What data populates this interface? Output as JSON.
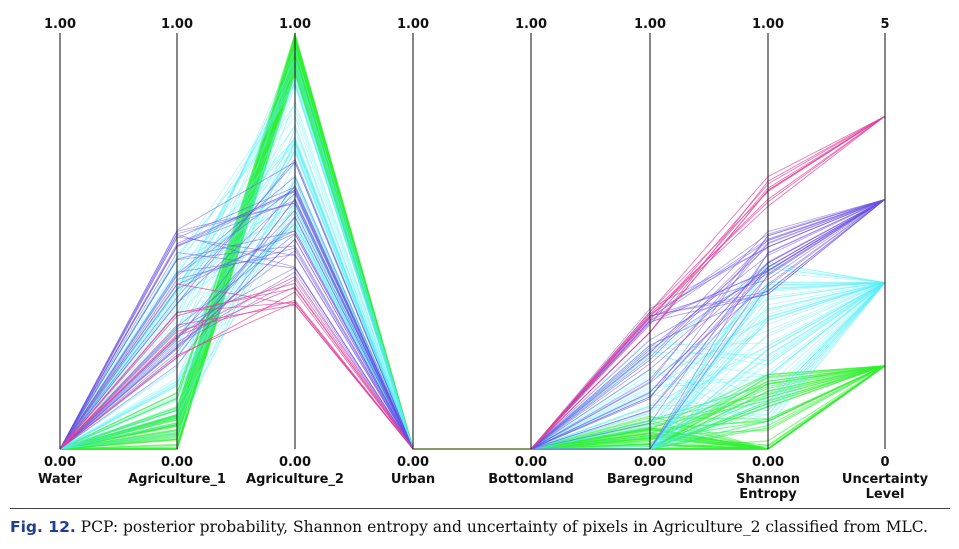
{
  "chart_data": {
    "type": "parallel_coordinates",
    "title": "",
    "axes": [
      {
        "name": "Water",
        "max": "1.00",
        "min": "0.00"
      },
      {
        "name": "Agriculture_1",
        "max": "1.00",
        "min": "0.00"
      },
      {
        "name": "Agriculture_2",
        "max": "1.00",
        "min": "0.00"
      },
      {
        "name": "Urban",
        "max": "1.00",
        "min": "0.00"
      },
      {
        "name": "Bottomland",
        "max": "1.00",
        "min": "0.00"
      },
      {
        "name": "Bareground",
        "max": "1.00",
        "min": "0.00"
      },
      {
        "name": "Shannon\nEntropy",
        "max": "1.00",
        "min": "0.00"
      },
      {
        "name": "Uncertainty\nLevel",
        "max": "5",
        "min": "0"
      }
    ],
    "ranges": [
      [
        0,
        1
      ],
      [
        0,
        1
      ],
      [
        0,
        1
      ],
      [
        0,
        1
      ],
      [
        0,
        1
      ],
      [
        0,
        1
      ],
      [
        0,
        1
      ],
      [
        0,
        5
      ]
    ],
    "grid": false,
    "legend": "none",
    "series": [
      {
        "uncertainty_level": 1,
        "color": "#33ee33",
        "values": [
          0.0,
          0.04,
          0.98,
          0.0,
          0.0,
          0.0,
          0.0,
          1
        ]
      },
      {
        "uncertainty_level": 2,
        "color": "#55eef5",
        "values": [
          0.0,
          0.25,
          0.75,
          0.0,
          0.0,
          0.02,
          0.25,
          2
        ]
      },
      {
        "uncertainty_level": 3,
        "color": "#6a4fe0",
        "values": [
          0.0,
          0.35,
          0.55,
          0.0,
          0.0,
          0.15,
          0.45,
          3
        ]
      },
      {
        "uncertainty_level": 4,
        "color": "#e0409a",
        "values": [
          0.0,
          0.32,
          0.38,
          0.0,
          0.0,
          0.32,
          0.62,
          4
        ]
      }
    ]
  },
  "caption": {
    "label": "Fig. 12.",
    "text": " PCP: posterior probability, Shannon entropy and uncertainty of pixels in Agriculture_2 classified from MLC."
  }
}
